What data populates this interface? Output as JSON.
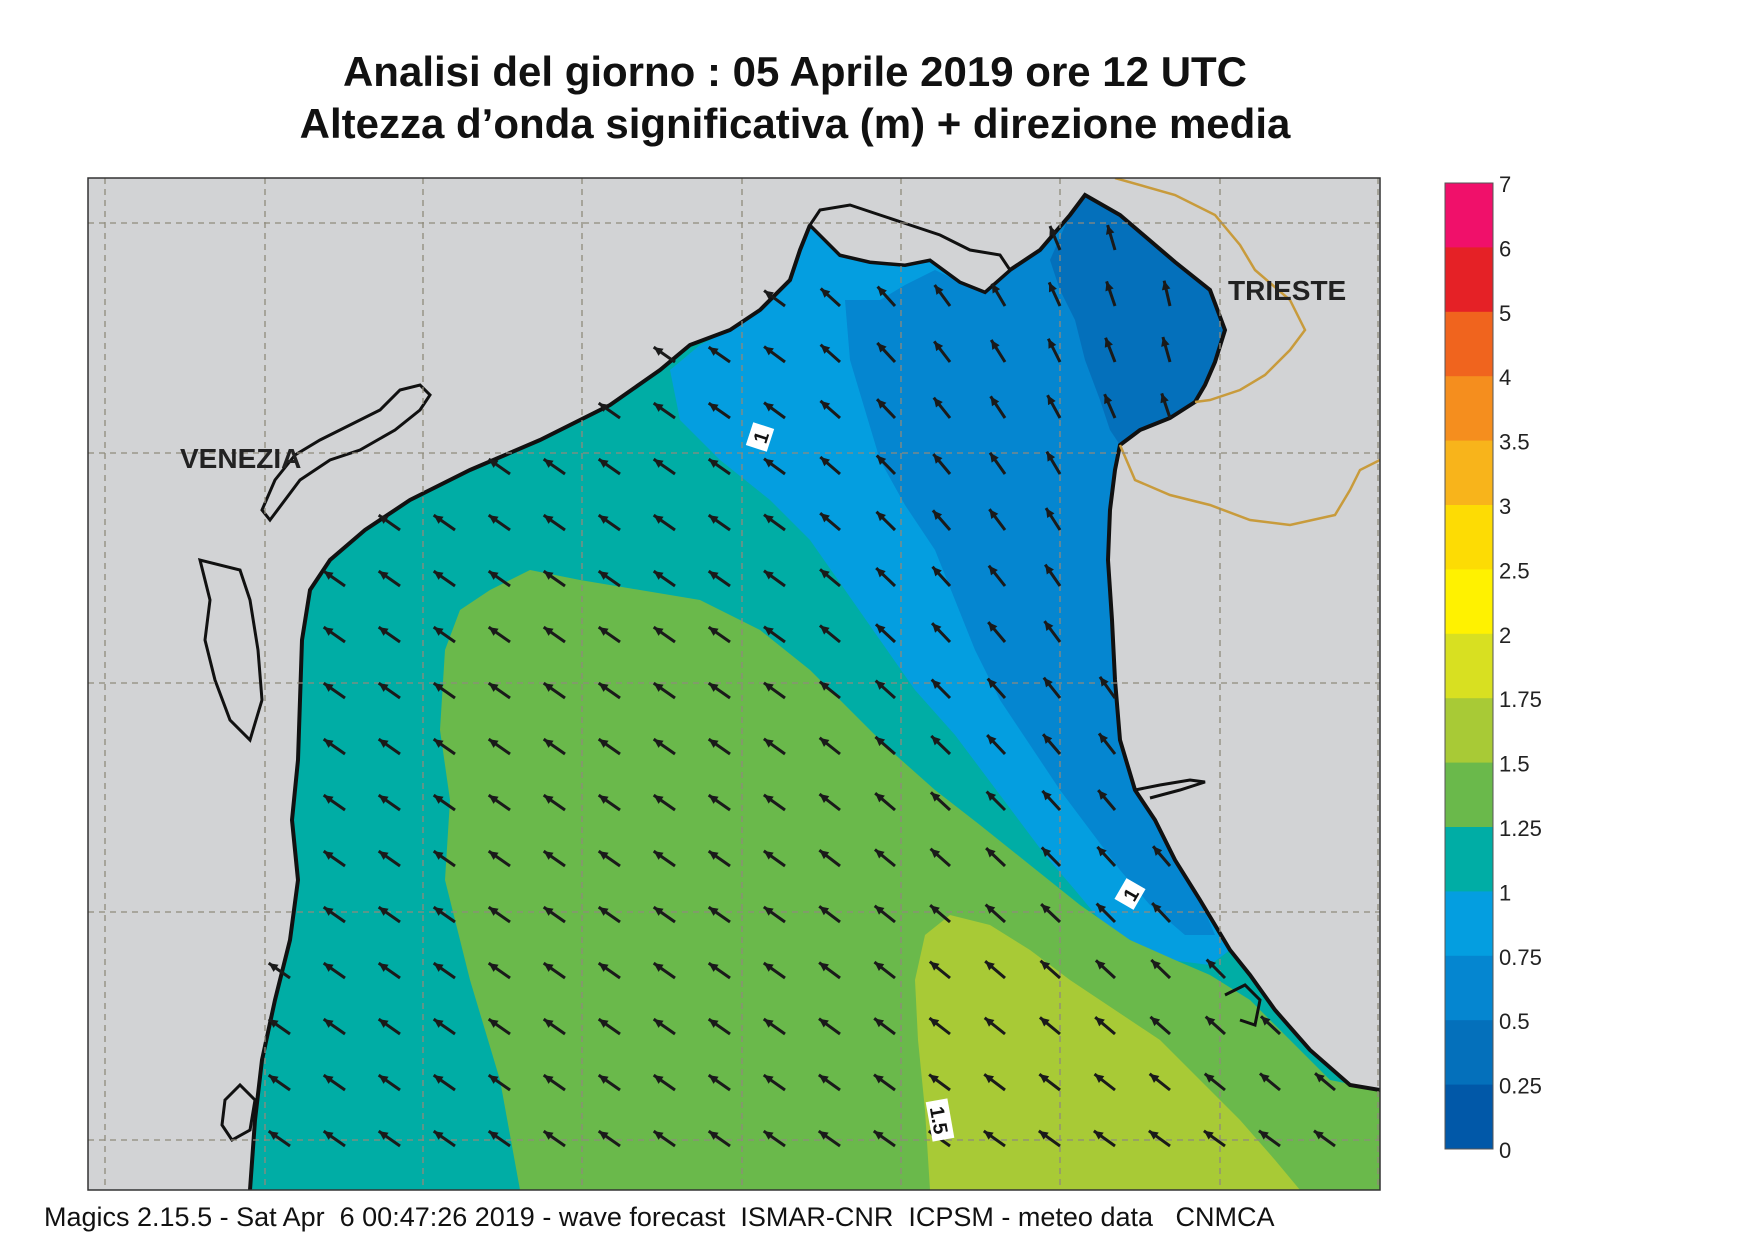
{
  "header": {
    "title_line1": "Analisi del giorno :  05   Aprile  2019   ore 12 UTC",
    "title_line2": "Altezza d’onda significativa (m) + direzione media"
  },
  "map": {
    "place_labels": {
      "venezia": "VENEZIA",
      "trieste": "TRIESTE"
    },
    "contour_labels": [
      "1",
      "1",
      "1.5"
    ]
  },
  "legend": {
    "labels": [
      "7",
      "6",
      "5",
      "4",
      "3.5",
      "3",
      "2.5",
      "2",
      "1.75",
      "1.5",
      "1.25",
      "1",
      "0.75",
      "0.5",
      "0.25",
      "0"
    ],
    "colors": [
      "#f0106a",
      "#e52126",
      "#f0641e",
      "#f58e1e",
      "#f8b41b",
      "#fddc04",
      "#fff200",
      "#d8e021",
      "#a8ca36",
      "#6ab94b",
      "#00ada5",
      "#049ee0",
      "#0586d0",
      "#0470bb",
      "#0158a8"
    ]
  },
  "footer": {
    "text": "Magics 2.15.5 - Sat Apr  6 00:47:26 2019 - wave forecast  ISMAR-CNR  ICPSM - meteo data   CNMCA"
  },
  "colors": {
    "land": "#d2d3d5",
    "band_0_25_0_5": "#0470bb",
    "band_0_5_0_75": "#0586d0",
    "band_0_75_1": "#049ee0",
    "band_1_1_25": "#00ada5",
    "band_1_25_1_5": "#6ab94b",
    "band_1_5_1_75": "#a8ca36",
    "border": "#c89b3c"
  }
}
